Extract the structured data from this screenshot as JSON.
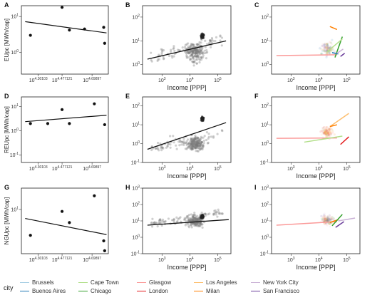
{
  "figure": {
    "panels": [
      {
        "letter": "A",
        "ylabel": "EUpc [MWh/cap]"
      },
      {
        "letter": "B"
      },
      {
        "letter": "C"
      },
      {
        "letter": "D",
        "ylabel": "REUpc [MWh/cap]"
      },
      {
        "letter": "E"
      },
      {
        "letter": "F"
      },
      {
        "letter": "G",
        "ylabel": "NGUpc [MWh/cap]"
      },
      {
        "letter": "H"
      },
      {
        "letter": "I"
      }
    ],
    "xlabel_common": "Income [PPP]",
    "col1_ticks": [
      "10^4.30103",
      "10^4.477121",
      "10^4.69897"
    ],
    "col23_ticks": [
      "10^3",
      "10^4",
      "10^5"
    ],
    "ytick_A": [
      "10^1",
      "10^0"
    ],
    "ytick_D": [
      "10^1",
      "10^0",
      "10^-1"
    ],
    "ytick_G": [
      "10^1"
    ],
    "ytick_B": [
      "10^2",
      "10^1",
      "10^0"
    ],
    "ytick_EF": [
      "10^2",
      "10^1",
      "10^0",
      "10^-1"
    ],
    "ytick_HI": [
      "10^3",
      "10^2",
      "10^1",
      "10^0",
      "10^-1"
    ]
  },
  "legend": {
    "title": "city",
    "items": [
      {
        "label": "Brussels",
        "color": "#a6cee3"
      },
      {
        "label": "Buenos Aires",
        "color": "#1f78b4"
      },
      {
        "label": "Cape Town",
        "color": "#b2df8a"
      },
      {
        "label": "Chicago",
        "color": "#33a02c"
      },
      {
        "label": "Glasgow",
        "color": "#fb9a99"
      },
      {
        "label": "London",
        "color": "#e31a1c"
      },
      {
        "label": "Los Angeles",
        "color": "#fdbf6f"
      },
      {
        "label": "Milan",
        "color": "#ff7f00"
      },
      {
        "label": "New York City",
        "color": "#cab2d6"
      },
      {
        "label": "San Francisco",
        "color": "#6a3d9a"
      }
    ]
  },
  "chart_data": [
    {
      "panel": "A",
      "type": "scatter",
      "xscale": "log",
      "yscale": "log",
      "x": [
        17500,
        30000,
        34000,
        44000,
        61000,
        62000
      ],
      "y": [
        3.0,
        18.0,
        4.2,
        4.5,
        5.0,
        1.8
      ],
      "fit": {
        "x": [
          16000,
          64000
        ],
        "y": [
          7.2,
          3.5
        ]
      },
      "xlim": [
        15000,
        66000
      ],
      "ylim": [
        0.25,
        20
      ]
    },
    {
      "panel": "B",
      "type": "scatter",
      "xscale": "log",
      "yscale": "log",
      "fit": {
        "x": [
          300,
          200000
        ],
        "y": [
          1.7,
          10
        ]
      },
      "xlim": [
        200,
        300000
      ],
      "ylim": [
        0.4,
        300
      ],
      "cluster_note": "dense cloud of several hundred grey points between 10^3.5 and 10^5"
    },
    {
      "panel": "C",
      "type": "line",
      "xscale": "log",
      "yscale": "log",
      "xlim": [
        200,
        300000
      ],
      "ylim": [
        0.4,
        300
      ],
      "series": [
        {
          "name": "Glasgow",
          "x": [
            300,
            45000
          ],
          "y": [
            2.4,
            2.6
          ]
        },
        {
          "name": "Milan",
          "x": [
            25000,
            45000
          ],
          "y": [
            40,
            30
          ]
        },
        {
          "name": "Chicago",
          "x": [
            38000,
            70000
          ],
          "y": [
            2.0,
            15
          ]
        },
        {
          "name": "Cape Town",
          "x": [
            20000,
            70000
          ],
          "y": [
            3.5,
            12
          ]
        },
        {
          "name": "Buenos Aires",
          "x": [
            30000,
            50000
          ],
          "y": [
            3.2,
            2.8
          ]
        },
        {
          "name": "New York City",
          "x": [
            45000,
            75000
          ],
          "y": [
            3.0,
            4.5
          ]
        },
        {
          "name": "San Francisco",
          "x": [
            60000,
            85000
          ],
          "y": [
            2.2,
            3.0
          ]
        }
      ]
    },
    {
      "panel": "D",
      "type": "scatter",
      "xscale": "log",
      "yscale": "log",
      "x": [
        17500,
        23500,
        30000,
        34000,
        52000,
        62000
      ],
      "y": [
        2.0,
        2.0,
        7.5,
        2.0,
        13,
        1.8
      ],
      "fit": {
        "x": [
          16000,
          64000
        ],
        "y": [
          2.4,
          4.4
        ]
      },
      "xlim": [
        15000,
        66000
      ],
      "ylim": [
        0.05,
        25
      ]
    },
    {
      "panel": "E",
      "type": "scatter",
      "xscale": "log",
      "yscale": "log",
      "fit": {
        "x": [
          300,
          200000
        ],
        "y": [
          0.5,
          13
        ]
      },
      "xlim": [
        200,
        300000
      ],
      "ylim": [
        0.1,
        300
      ]
    },
    {
      "panel": "F",
      "type": "line",
      "xscale": "log",
      "yscale": "log",
      "xlim": [
        200,
        300000
      ],
      "ylim": [
        0.1,
        300
      ],
      "series": [
        {
          "name": "Glasgow",
          "x": [
            300,
            45000
          ],
          "y": [
            1.9,
            2.0
          ]
        },
        {
          "name": "Cape Town",
          "x": [
            3000,
            70000
          ],
          "y": [
            1.2,
            2.5
          ]
        },
        {
          "name": "Los Angeles",
          "x": [
            25000,
            120000
          ],
          "y": [
            8,
            40
          ]
        },
        {
          "name": "Milan",
          "x": [
            25000,
            45000
          ],
          "y": [
            8,
            10
          ]
        },
        {
          "name": "London",
          "x": [
            60000,
            120000
          ],
          "y": [
            0.9,
            2.3
          ]
        }
      ]
    },
    {
      "panel": "G",
      "type": "scatter",
      "xscale": "log",
      "yscale": "log",
      "x": [
        17500,
        30000,
        34000,
        52000,
        61000,
        62000
      ],
      "y": [
        3.3,
        9.2,
        5.7,
        18.0,
        2.6,
        1.7
      ],
      "fit": {
        "x": [
          16000,
          64000
        ],
        "y": [
          6.8,
          3.4
        ]
      },
      "xlim": [
        15000,
        66000
      ],
      "ylim": [
        1.5,
        25
      ]
    },
    {
      "panel": "H",
      "type": "scatter",
      "xscale": "log",
      "yscale": "log",
      "fit": {
        "x": [
          300,
          250000
        ],
        "y": [
          5.5,
          12
        ]
      },
      "xlim": [
        200,
        300000
      ],
      "ylim": [
        0.1,
        1000
      ]
    },
    {
      "panel": "I",
      "type": "line",
      "xscale": "log",
      "yscale": "log",
      "xlim": [
        200,
        300000
      ],
      "ylim": [
        0.1,
        1000
      ],
      "series": [
        {
          "name": "Glasgow",
          "x": [
            300,
            45000
          ],
          "y": [
            5.5,
            9
          ]
        },
        {
          "name": "Milan",
          "x": [
            25000,
            50000
          ],
          "y": [
            8,
            12
          ]
        },
        {
          "name": "Chicago",
          "x": [
            30000,
            70000
          ],
          "y": [
            5,
            25
          ]
        },
        {
          "name": "San Francisco",
          "x": [
            40000,
            80000
          ],
          "y": [
            4,
            9
          ]
        },
        {
          "name": "New York City",
          "x": [
            50000,
            200000
          ],
          "y": [
            10,
            15
          ]
        }
      ]
    }
  ]
}
